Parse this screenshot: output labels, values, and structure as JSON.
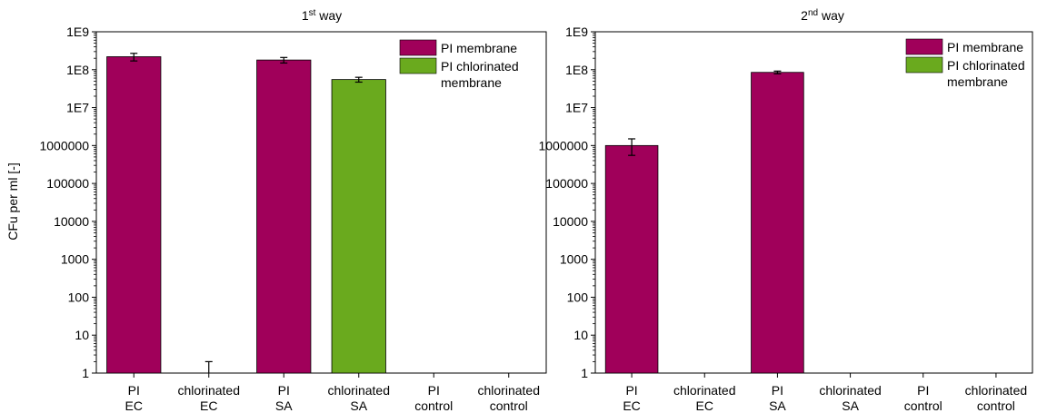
{
  "chart_data": [
    {
      "type": "bar",
      "title": "1",
      "title_sup": "st",
      "title_rest": " way",
      "ylabel": "CFu per ml [-]",
      "yscale": "log",
      "ylim": [
        1,
        1000000000
      ],
      "ytick_labels": [
        "1",
        "10",
        "100",
        "1000",
        "10000",
        "100000",
        "1000000",
        "1E7",
        "1E8",
        "1E9"
      ],
      "categories": [
        [
          "PI",
          "EC"
        ],
        [
          "chlorinated",
          "EC"
        ],
        [
          "PI",
          "SA"
        ],
        [
          "chlorinated",
          "SA"
        ],
        [
          "PI",
          "control"
        ],
        [
          "chlorinated",
          "control"
        ]
      ],
      "series": [
        {
          "name": "PI membrane",
          "color": "#a0005a"
        },
        {
          "name": "PI chlorinated membrane",
          "color": "#6aaa1e"
        }
      ],
      "bars": [
        {
          "category": 0,
          "series": 0,
          "value": 220000000,
          "err_low": 170000000,
          "err_high": 270000000
        },
        {
          "category": 1,
          "series": 1,
          "value": 1,
          "err_low": 1,
          "err_high": 2
        },
        {
          "category": 2,
          "series": 0,
          "value": 180000000,
          "err_low": 150000000,
          "err_high": 210000000
        },
        {
          "category": 3,
          "series": 1,
          "value": 55000000,
          "err_low": 47000000,
          "err_high": 63000000
        }
      ],
      "legend": [
        {
          "lines": [
            "PI membrane"
          ],
          "color": "#a0005a"
        },
        {
          "lines": [
            "PI chlorinated",
            "membrane"
          ],
          "color": "#6aaa1e"
        }
      ],
      "legend_position": "top-right",
      "grid": false
    },
    {
      "type": "bar",
      "title": "2",
      "title_sup": "nd",
      "title_rest": " way",
      "ylabel": "",
      "yscale": "log",
      "ylim": [
        1,
        1000000000
      ],
      "ytick_labels": [
        "1",
        "10",
        "100",
        "1000",
        "10000",
        "100000",
        "1000000",
        "1E7",
        "1E8",
        "1E9"
      ],
      "categories": [
        [
          "PI",
          "EC"
        ],
        [
          "chlorinated",
          "EC"
        ],
        [
          "PI",
          "SA"
        ],
        [
          "chlorinated",
          "SA"
        ],
        [
          "PI",
          "control"
        ],
        [
          "chlorinated",
          "control"
        ]
      ],
      "series": [
        {
          "name": "PI membrane",
          "color": "#a0005a"
        },
        {
          "name": "PI chlorinated membrane",
          "color": "#6aaa1e"
        }
      ],
      "bars": [
        {
          "category": 0,
          "series": 0,
          "value": 1000000,
          "err_low": 550000,
          "err_high": 1500000
        },
        {
          "category": 2,
          "series": 0,
          "value": 85000000,
          "err_low": 78000000,
          "err_high": 92000000
        }
      ],
      "legend": [
        {
          "lines": [
            "PI membrane"
          ],
          "color": "#a0005a"
        },
        {
          "lines": [
            "PI chlorinated",
            "membrane"
          ],
          "color": "#6aaa1e"
        }
      ],
      "legend_position": "top-right",
      "grid": false
    }
  ]
}
